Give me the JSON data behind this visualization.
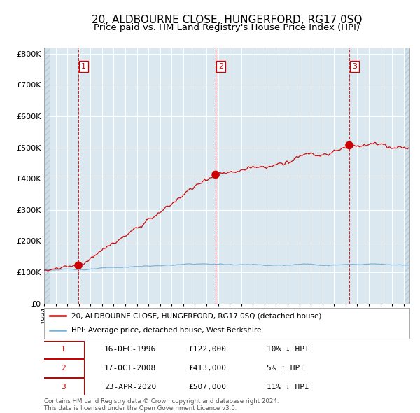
{
  "title": "20, ALDBOURNE CLOSE, HUNGERFORD, RG17 0SQ",
  "subtitle": "Price paid vs. HM Land Registry's House Price Index (HPI)",
  "title_fontsize": 11,
  "subtitle_fontsize": 9.5,
  "ylabel_ticks": [
    "£0",
    "£100K",
    "£200K",
    "£300K",
    "£400K",
    "£500K",
    "£600K",
    "£700K",
    "£800K"
  ],
  "ytick_values": [
    0,
    100000,
    200000,
    300000,
    400000,
    500000,
    600000,
    700000,
    800000
  ],
  "ylim": [
    0,
    820000
  ],
  "xlim_start": 1994.0,
  "xlim_end": 2025.5,
  "sale_dates": [
    1996.96,
    2008.79,
    2020.31
  ],
  "sale_prices": [
    122000,
    413000,
    507000
  ],
  "sale_labels": [
    "1",
    "2",
    "3"
  ],
  "vline_color": "#dd0000",
  "sale_dot_color": "#cc0000",
  "sale_dot_size": 70,
  "hpi_line_color": "#7ab0d4",
  "price_line_color": "#cc0000",
  "bg_color": "#dce8f0",
  "grid_color": "#ffffff",
  "legend_label_price": "20, ALDBOURNE CLOSE, HUNGERFORD, RG17 0SQ (detached house)",
  "legend_label_hpi": "HPI: Average price, detached house, West Berkshire",
  "table_rows": [
    [
      "1",
      "16-DEC-1996",
      "£122,000",
      "10% ↓ HPI"
    ],
    [
      "2",
      "17-OCT-2008",
      "£413,000",
      "5% ↑ HPI"
    ],
    [
      "3",
      "23-APR-2020",
      "£507,000",
      "11% ↓ HPI"
    ]
  ],
  "footer_text": "Contains HM Land Registry data © Crown copyright and database right 2024.\nThis data is licensed under the Open Government Licence v3.0.",
  "box_label_color": "#cc0000",
  "box_edgecolor": "#cc0000"
}
